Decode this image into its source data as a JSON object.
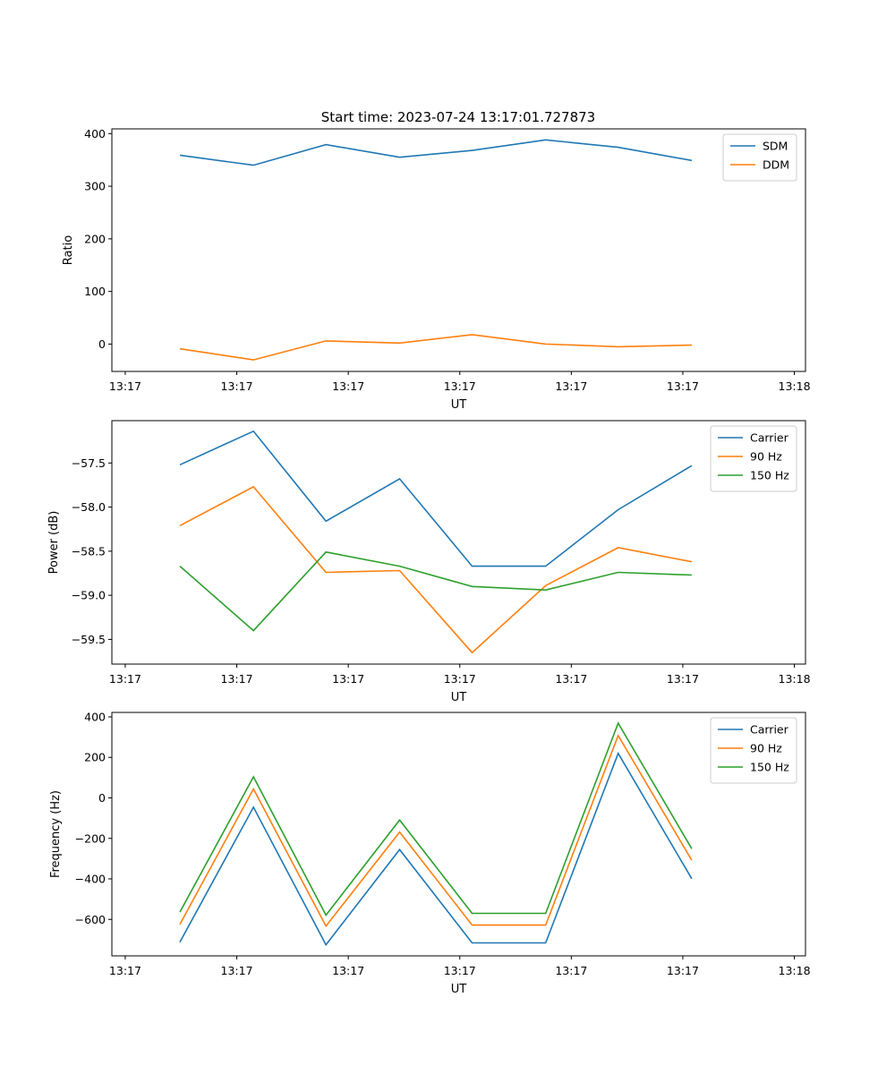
{
  "figure": {
    "title": "Start time: 2023-07-24 13:17:01.727873"
  },
  "chart_data": [
    {
      "type": "line",
      "title": "Start time: 2023-07-24 13:17:01.727873",
      "xlabel": "UT",
      "ylabel": "Ratio",
      "x_seconds_after_1317": [
        4.9,
        11.5,
        18.0,
        24.6,
        31.1,
        37.7,
        44.2,
        50.8
      ],
      "xlim_seconds": [
        -1.2,
        61
      ],
      "x_ticks_seconds": [
        0,
        10,
        20,
        30,
        40,
        50,
        60
      ],
      "x_tick_labels": [
        "13:17",
        "13:17",
        "13:17",
        "13:17",
        "13:17",
        "13:17",
        "13:18"
      ],
      "ylim": [
        -52,
        409
      ],
      "y_ticks": [
        0,
        100,
        200,
        300,
        400
      ],
      "y_tick_labels": [
        "0",
        "100",
        "200",
        "300",
        "400"
      ],
      "grid": false,
      "legend_position": "top-right",
      "series": [
        {
          "name": "SDM",
          "color": "#1f77b4",
          "values": [
            359,
            340,
            379,
            355,
            368,
            388,
            374,
            349
          ]
        },
        {
          "name": "DDM",
          "color": "#ff7f0e",
          "values": [
            -9,
            -30,
            6,
            2,
            18,
            0,
            -5,
            -2
          ]
        }
      ]
    },
    {
      "type": "line",
      "title": "",
      "xlabel": "UT",
      "ylabel": "Power (dB)",
      "x_seconds_after_1317": [
        4.9,
        11.5,
        18.0,
        24.6,
        31.1,
        37.7,
        44.2,
        50.8
      ],
      "xlim_seconds": [
        -1.2,
        61
      ],
      "x_ticks_seconds": [
        0,
        10,
        20,
        30,
        40,
        50,
        60
      ],
      "x_tick_labels": [
        "13:17",
        "13:17",
        "13:17",
        "13:17",
        "13:17",
        "13:17",
        "13:18"
      ],
      "ylim": [
        -59.78,
        -57.02
      ],
      "y_ticks": [
        -57.5,
        -58.0,
        -58.5,
        -59.0,
        -59.5
      ],
      "y_tick_labels": [
        "−57.5",
        "−58.0",
        "−58.5",
        "−59.0",
        "−59.5"
      ],
      "grid": false,
      "legend_position": "top-right",
      "series": [
        {
          "name": "Carrier",
          "color": "#1f77b4",
          "values": [
            -57.52,
            -57.14,
            -58.16,
            -57.68,
            -58.67,
            -58.67,
            -58.03,
            -57.53
          ]
        },
        {
          "name": "90 Hz",
          "color": "#ff7f0e",
          "values": [
            -58.21,
            -57.77,
            -58.74,
            -58.72,
            -59.65,
            -58.89,
            -58.46,
            -58.62
          ]
        },
        {
          "name": "150 Hz",
          "color": "#2ca02c",
          "values": [
            -58.67,
            -59.4,
            -58.51,
            -58.67,
            -58.9,
            -58.94,
            -58.74,
            -58.77
          ]
        }
      ]
    },
    {
      "type": "line",
      "title": "",
      "xlabel": "UT",
      "ylabel": "Frequency (Hz)",
      "x_seconds_after_1317": [
        4.9,
        11.5,
        18.0,
        24.6,
        31.1,
        37.7,
        44.2,
        50.8
      ],
      "xlim_seconds": [
        -1.2,
        61
      ],
      "x_ticks_seconds": [
        0,
        10,
        20,
        30,
        40,
        50,
        60
      ],
      "x_tick_labels": [
        "13:17",
        "13:17",
        "13:17",
        "13:17",
        "13:17",
        "13:17",
        "13:18"
      ],
      "ylim": [
        -780,
        422
      ],
      "y_ticks": [
        400,
        200,
        0,
        -200,
        -400,
        -600
      ],
      "y_tick_labels": [
        "400",
        "200",
        "0",
        "−200",
        "−400",
        "−600"
      ],
      "grid": false,
      "legend_position": "top-right",
      "series": [
        {
          "name": "Carrier",
          "color": "#1f77b4",
          "values": [
            -712,
            -46,
            -725,
            -255,
            -716,
            -716,
            220,
            -399
          ]
        },
        {
          "name": "90 Hz",
          "color": "#ff7f0e",
          "values": [
            -624,
            44,
            -633,
            -169,
            -628,
            -628,
            308,
            -308
          ]
        },
        {
          "name": "150 Hz",
          "color": "#2ca02c",
          "values": [
            -564,
            104,
            -579,
            -109,
            -570,
            -570,
            369,
            -251
          ]
        }
      ]
    }
  ]
}
